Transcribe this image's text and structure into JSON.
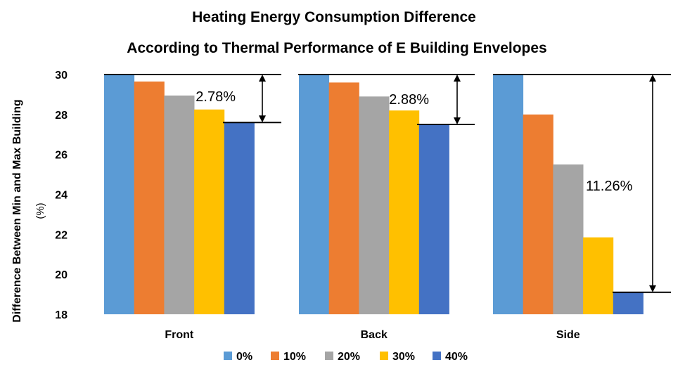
{
  "chart_data": {
    "type": "bar",
    "title": [
      "Heating Energy Consumption Difference",
      "According to Thermal Performance of E Building Envelopes"
    ],
    "ylabel": [
      "Difference Between Min and Max Building",
      "(%)"
    ],
    "xlabel": "",
    "ylim": [
      18,
      30
    ],
    "yticks": [
      18,
      20,
      22,
      24,
      26,
      28,
      30
    ],
    "grid": false,
    "legend": "bottom",
    "categories": [
      "Front",
      "Back",
      "Side"
    ],
    "series": [
      {
        "name": "0%",
        "color": "#5B9BD5",
        "values": [
          30.0,
          30.0,
          30.0
        ]
      },
      {
        "name": "10%",
        "color": "#ED7D31",
        "values": [
          29.65,
          29.6,
          28.0
        ]
      },
      {
        "name": "20%",
        "color": "#A5A5A5",
        "values": [
          28.95,
          28.9,
          25.5
        ]
      },
      {
        "name": "30%",
        "color": "#FFC000",
        "values": [
          28.25,
          28.2,
          21.85
        ]
      },
      {
        "name": "40%",
        "color": "#4472C4",
        "values": [
          27.6,
          27.5,
          19.1
        ]
      }
    ],
    "annotations": [
      {
        "category": "Front",
        "text": "2.78%",
        "top": 30.0,
        "bottom": 27.6
      },
      {
        "category": "Back",
        "text": "2.88%",
        "top": 30.0,
        "bottom": 27.5
      },
      {
        "category": "Side",
        "text": "11.26%",
        "top": 30.0,
        "bottom": 19.1
      }
    ]
  }
}
